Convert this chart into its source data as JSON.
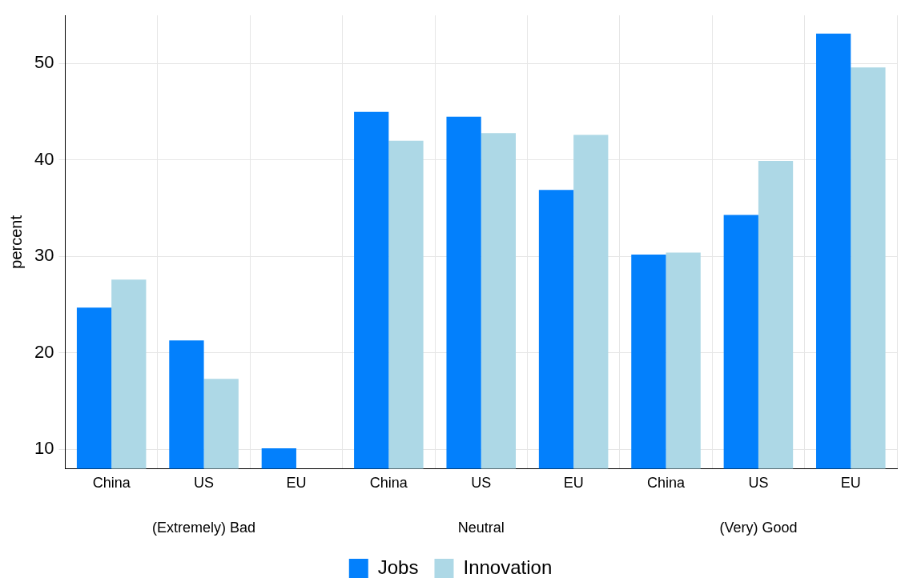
{
  "chart_data": {
    "type": "bar",
    "ylabel": "percent",
    "categories": [
      "China",
      "US",
      "EU",
      "China",
      "US",
      "EU",
      "China",
      "US",
      "EU"
    ],
    "annotations": [
      "(Extremely) Bad",
      "Neutral",
      "(Very) Good"
    ],
    "series": [
      {
        "name": "Jobs",
        "color": "#0380fc",
        "values": [
          24.7,
          21.3,
          10.1,
          45.0,
          44.5,
          36.9,
          30.2,
          34.3,
          53.1
        ]
      },
      {
        "name": "Innovation",
        "color": "#add8e6",
        "values": [
          27.6,
          17.3,
          null,
          42.0,
          42.8,
          42.6,
          30.4,
          39.9,
          49.6
        ]
      }
    ],
    "ylim": [
      8,
      55
    ],
    "yticks": [
      10,
      20,
      30,
      40,
      50
    ],
    "grid": true,
    "legend": "bottom"
  }
}
